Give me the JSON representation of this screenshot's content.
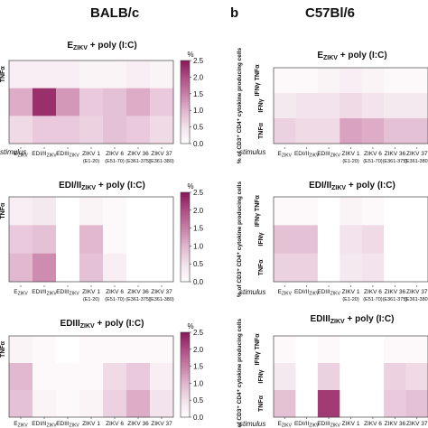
{
  "header": {
    "left_title": "BALB/c",
    "right_letter": "b",
    "right_title": "C57Bl/6"
  },
  "colorbar": {
    "unit": "%",
    "ticks": [
      "0.0",
      "0.5",
      "1.0",
      "1.5",
      "2.0",
      "2.5"
    ],
    "colors": [
      "#ffffff",
      "#f3e3ec",
      "#e2b8cf",
      "#c981a9",
      "#b05087",
      "#8a1a5a"
    ]
  },
  "labels": {
    "stimulus": "stimulus",
    "right_ylabel": "% of CD3⁺ CD4⁺ cytokine producing cells",
    "row_ifn_tnf": "IFNγ TNFα",
    "row_ifn": "IFNγ",
    "row_tnf": "TNFα",
    "left_row_tnf": "TNFα"
  },
  "x_ticks": [
    {
      "main": "E",
      "sub": "ZIKV",
      "line2": ""
    },
    {
      "main": "EDI/II",
      "sub": "ZIKV",
      "line2": ""
    },
    {
      "main": "EDIII",
      "sub": "ZIKV",
      "line2": ""
    },
    {
      "main": "ZIKV 1",
      "sub": "",
      "line2": "(E1-20)"
    },
    {
      "main": "ZIKV 6",
      "sub": "",
      "line2": "(E51-70)"
    },
    {
      "main": "ZIKV 36",
      "sub": "",
      "line2": "(E361-375)"
    },
    {
      "main": "ZIKV 37",
      "sub": "",
      "line2": "(E361-380)"
    }
  ],
  "chart_data": [
    {
      "type": "heatmap",
      "panel": "BALB/c – EZIKV + poly (I:C)",
      "title_main": "E",
      "title_sub": "ZIKV",
      "title_rest": " + poly (I:C)",
      "columns": [
        "EZIKV",
        "EDI/IIZIKV",
        "EDIIIZIKV",
        "ZIKV 1 (E1-20)",
        "ZIKV 6 (E51-70)",
        "ZIKV 36 (E361-375)",
        "ZIKV 37 (E361-380)"
      ],
      "values": [
        [
          0.3,
          0.3,
          0.3,
          0.2,
          0.2,
          0.3,
          0.2
        ],
        [
          1.1,
          2.3,
          1.3,
          0.8,
          0.9,
          1.1,
          0.8
        ],
        [
          0.6,
          0.8,
          0.8,
          0.7,
          0.9,
          0.8,
          0.6
        ]
      ],
      "zlim": [
        0,
        2.5
      ]
    },
    {
      "type": "heatmap",
      "panel": "BALB/c – EDI/IIZIKV + poly (I:C)",
      "title_main": "EDI/II",
      "title_sub": "ZIKV",
      "title_rest": " + poly (I:C)",
      "columns": [
        "EZIKV",
        "EDI/IIZIKV",
        "EDIIIZIKV",
        "ZIKV 1 (E1-20)",
        "ZIKV 6 (E51-70)",
        "ZIKV 36 (E361-375)",
        "ZIKV 37 (E361-380)"
      ],
      "values": [
        [
          0.3,
          0.4,
          0.0,
          0.2,
          0.1,
          0.0,
          0.0
        ],
        [
          0.8,
          0.9,
          0.0,
          1.0,
          0.1,
          0.0,
          0.0
        ],
        [
          1.0,
          1.4,
          0.0,
          0.9,
          0.3,
          0.0,
          0.0
        ]
      ],
      "zlim": [
        0,
        2.5
      ]
    },
    {
      "type": "heatmap",
      "panel": "BALB/c – EDIIIZIKV + poly (I:C)",
      "title_main": "EDIII",
      "title_sub": "ZIKV",
      "title_rest": " + poly (I:C)",
      "columns": [
        "EZIKV",
        "EDI/IIZIKV",
        "EDIIIZIKV",
        "ZIKV 1 (E1-20)",
        "ZIKV 6 (E51-70)",
        "ZIKV 36 (E361-375)",
        "ZIKV 37 (E361-380)"
      ],
      "values": [
        [
          0.2,
          0.1,
          0.0,
          0.1,
          0.1,
          0.1,
          0.1
        ],
        [
          1.0,
          0.1,
          0.1,
          0.1,
          0.6,
          0.8,
          0.3
        ],
        [
          0.9,
          0.2,
          0.1,
          0.2,
          0.7,
          1.1,
          0.5
        ]
      ],
      "zlim": [
        0,
        2.5
      ]
    },
    {
      "type": "heatmap",
      "panel": "C57Bl/6 – EZIKV + poly (I:C)",
      "title_main": "E",
      "title_sub": "ZIKV",
      "title_rest": " + poly (I:C)",
      "rows": [
        "IFNγ TNFα",
        "IFNγ",
        "TNFα"
      ],
      "columns": [
        "EZIKV",
        "EDI/IIZIKV",
        "EDIIIZIKV",
        "ZIKV 1 (E1-20)",
        "ZIKV 6 (E51-70)",
        "ZIKV 36 (E361-375)",
        "ZIKV 37 (E361-380)"
      ],
      "values": [
        [
          0.1,
          0.1,
          0.2,
          0.3,
          0.2,
          0.1,
          0.1
        ],
        [
          0.4,
          0.5,
          0.5,
          0.6,
          0.5,
          0.4,
          0.4
        ],
        [
          0.7,
          0.6,
          0.6,
          1.2,
          1.1,
          0.9,
          0.9
        ]
      ],
      "zlim": [
        0,
        2.5
      ]
    },
    {
      "type": "heatmap",
      "panel": "C57Bl/6 – EDI/IIZIKV + poly (I:C)",
      "title_main": "EDI/II",
      "title_sub": "ZIKV",
      "title_rest": " + poly (I:C)",
      "rows": [
        "IFNγ TNFα",
        "IFNγ",
        "TNFα"
      ],
      "columns": [
        "EZIKV",
        "EDI/IIZIKV",
        "EDIIIZIKV",
        "ZIKV 1 (E1-20)",
        "ZIKV 6 (E51-70)",
        "ZIKV 36 (E361-375)",
        "ZIKV 37 (E361-380)"
      ],
      "values": [
        [
          0.1,
          0.1,
          0.0,
          0.2,
          0.1,
          0.0,
          0.0
        ],
        [
          0.9,
          0.9,
          0.0,
          0.5,
          0.6,
          0.0,
          0.0
        ],
        [
          0.7,
          0.7,
          0.0,
          0.4,
          0.5,
          0.0,
          0.0
        ]
      ],
      "zlim": [
        0,
        2.5
      ]
    },
    {
      "type": "heatmap",
      "panel": "C57Bl/6 – EDIIIZIKV + poly (I:C)",
      "title_main": "EDIII",
      "title_sub": "ZIKV",
      "title_rest": " + poly (I:C)",
      "rows": [
        "IFNγ TNFα",
        "IFNγ",
        "TNFα"
      ],
      "columns": [
        "EZIKV",
        "EDI/IIZIKV",
        "EDIIIZIKV",
        "ZIKV 1 (E1-20)",
        "ZIKV 6 (E51-70)",
        "ZIKV 36 (E361-375)",
        "ZIKV 37 (E361-380)"
      ],
      "values": [
        [
          0.1,
          0.0,
          0.1,
          0.0,
          0.0,
          0.1,
          0.1
        ],
        [
          0.4,
          0.0,
          0.7,
          0.0,
          0.0,
          0.7,
          0.6
        ],
        [
          0.9,
          0.0,
          2.2,
          0.0,
          0.0,
          0.8,
          0.9
        ]
      ],
      "zlim": [
        0,
        2.5
      ]
    }
  ]
}
